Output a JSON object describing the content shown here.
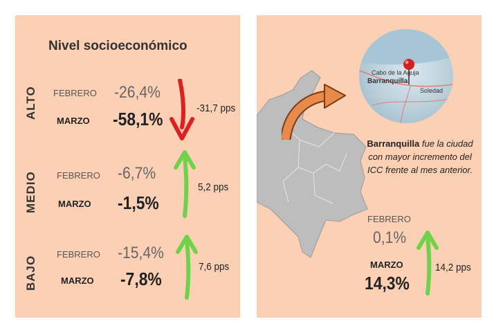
{
  "title": "Nivel socioeconómico",
  "levels": [
    {
      "name": "ALTO",
      "feb_label": "FEBRERO",
      "feb_value": "-26,4%",
      "mar_label": "MARZO",
      "mar_value": "-58,1%",
      "change": "-31,7 pps",
      "direction": "down"
    },
    {
      "name": "MEDIO",
      "feb_label": "FEBRERO",
      "feb_value": "-6,7%",
      "mar_label": "MARZO",
      "mar_value": "-1,5%",
      "change": "5,2 pps",
      "direction": "up"
    },
    {
      "name": "BAJO",
      "feb_label": "FEBRERO",
      "feb_value": "-15,4%",
      "mar_label": "MARZO",
      "mar_value": "-7,8%",
      "change": "7,6  pps",
      "direction": "up"
    }
  ],
  "city": {
    "name": "Barranquilla",
    "caption_rest": " fue la ciudad con mayor incremento del ICC frente al mes anterior.",
    "feb_label": "FEBRERO",
    "feb_value": "0,1%",
    "mar_label": "MARZO",
    "mar_value": "14,3%",
    "change": "14,2 pps",
    "map_labels": {
      "cape": "Cabo de la Aguja",
      "city": "Barranquilla",
      "other": "Soledad"
    }
  },
  "colors": {
    "panel": "#fcd0b4",
    "up": "#6fd34a",
    "down": "#e02020",
    "map": "#bdbdbd",
    "callout": "#e88a4a"
  }
}
